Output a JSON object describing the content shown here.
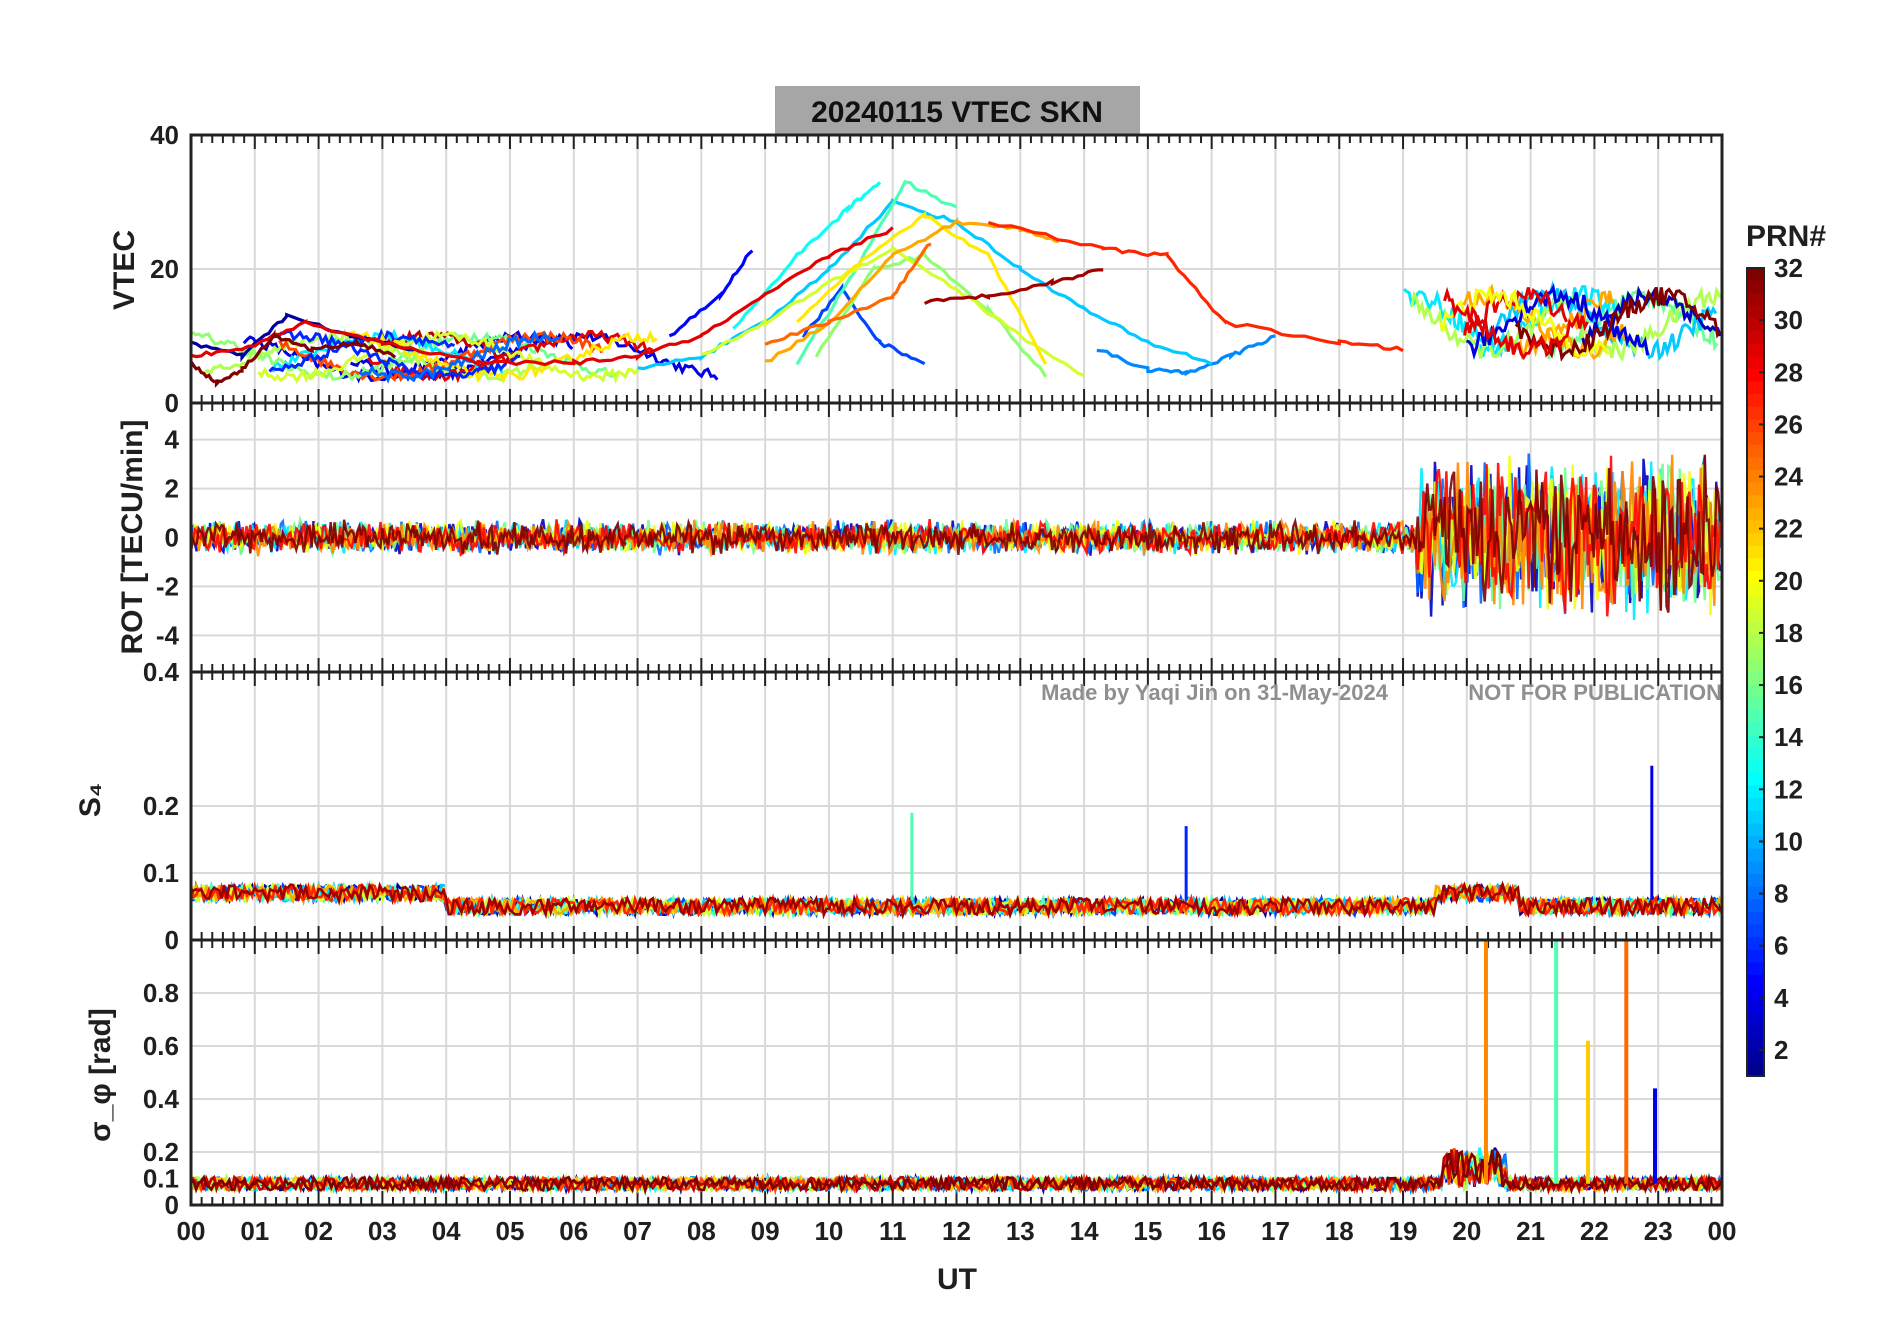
{
  "title": "20240115    VTEC  SKN",
  "watermark_left": "Made by Yaqi Jin on 31-May-2024",
  "watermark_right": "NOT FOR PUBLICATION",
  "colorbar": {
    "label": "PRN#",
    "min": 1,
    "max": 32,
    "ticks": [
      "2",
      "4",
      "6",
      "8",
      "10",
      "12",
      "14",
      "16",
      "18",
      "20",
      "22",
      "24",
      "26",
      "28",
      "30",
      "32"
    ],
    "colormap": "jet"
  },
  "chart_data": [
    {
      "id": "vtec",
      "type": "line",
      "ylabel": "VTEC",
      "ylim": [
        0,
        40
      ],
      "yticks": [
        "0",
        "20",
        "40"
      ],
      "xlim": [
        0,
        24
      ],
      "series": [
        {
          "name": "PRN 2",
          "x": [
            0,
            0.8,
            1.5,
            2.5,
            3.5
          ],
          "values": [
            9,
            7,
            13,
            10,
            8
          ]
        },
        {
          "name": "PRN 5",
          "x": [
            7.5,
            8.3,
            8.8
          ],
          "values": [
            10,
            16,
            23
          ]
        },
        {
          "name": "PRN 7",
          "x": [
            9.6,
            10.2,
            10.8,
            11.5
          ],
          "values": [
            10,
            17,
            9,
            6
          ]
        },
        {
          "name": "PRN 9",
          "x": [
            14.2,
            15,
            15.6,
            16.3,
            17
          ],
          "values": [
            8,
            5,
            4.5,
            7,
            10
          ]
        },
        {
          "name": "PRN 11",
          "x": [
            7.0,
            8,
            9,
            10,
            11,
            12,
            13,
            14,
            15,
            16
          ],
          "values": [
            5,
            7,
            12,
            20,
            30,
            27,
            20,
            14,
            9,
            6
          ]
        },
        {
          "name": "PRN 13",
          "x": [
            8.5,
            9.5,
            10.3,
            10.8
          ],
          "values": [
            11,
            22,
            29,
            33
          ]
        },
        {
          "name": "PRN 15",
          "x": [
            9.5,
            10.3,
            11.2,
            12.0
          ],
          "values": [
            6,
            18,
            33,
            29
          ]
        },
        {
          "name": "PRN 17",
          "x": [
            9.8,
            10.7,
            11.5,
            12.5,
            13.4
          ],
          "values": [
            7,
            20,
            22,
            14,
            4
          ]
        },
        {
          "name": "PRN 19",
          "x": [
            8.0,
            9,
            10,
            11,
            12,
            13,
            14
          ],
          "values": [
            7,
            12,
            18,
            23,
            17,
            10,
            4
          ]
        },
        {
          "name": "PRN 21",
          "x": [
            9.5,
            10.5,
            11.5,
            12.5,
            13.4
          ],
          "values": [
            12,
            21,
            28,
            22,
            6
          ]
        },
        {
          "name": "PRN 23",
          "x": [
            9.0,
            10,
            11,
            12,
            13,
            13.6
          ],
          "values": [
            6,
            12,
            22,
            27,
            26,
            24
          ]
        },
        {
          "name": "PRN 25",
          "x": [
            9.0,
            10,
            11,
            11.6
          ],
          "values": [
            9,
            12,
            16,
            24
          ]
        },
        {
          "name": "PRN 27",
          "x": [
            12.5,
            14.3,
            15.3,
            16.2,
            18,
            19
          ],
          "values": [
            27,
            23,
            22,
            12,
            9,
            8
          ]
        },
        {
          "name": "PRN 29",
          "x": [
            0,
            0.8,
            1.8,
            3,
            4.5,
            6,
            7,
            8,
            9,
            10,
            11
          ],
          "values": [
            7,
            8,
            12,
            9,
            6,
            6,
            7,
            10,
            16,
            22,
            26
          ]
        },
        {
          "name": "PRN 31",
          "x": [
            11.5,
            12.5,
            13.5,
            14.3
          ],
          "values": [
            15,
            16,
            18,
            20
          ]
        },
        {
          "name": "PRN 32",
          "x": [
            0,
            0.4,
            0.8,
            1.3,
            1.9,
            2.6,
            3.2
          ],
          "values": [
            6,
            3,
            5,
            10,
            8,
            9,
            7
          ]
        }
      ]
    },
    {
      "id": "rot",
      "type": "line",
      "ylabel": "ROT [TECU/min]",
      "ylim": [
        -5.5,
        5.5
      ],
      "yticks": [
        "-4",
        "-2",
        "0",
        "2",
        "4"
      ],
      "xlim": [
        0,
        24
      ],
      "noise_profile": {
        "quiet_amplitude": 0.6,
        "active_window_ut": [
          19.2,
          24
        ],
        "active_amplitude": 3.5
      }
    },
    {
      "id": "s4",
      "type": "line",
      "ylabel": "S₄",
      "ylim": [
        0,
        0.4
      ],
      "yticks": [
        "0",
        "0.1",
        "0.2",
        "0.4"
      ],
      "xlim": [
        0,
        24
      ],
      "baseline": 0.05,
      "peaks": [
        {
          "x": 11.3,
          "y": 0.19,
          "prn": 15
        },
        {
          "x": 22.9,
          "y": 0.26,
          "prn": 4
        },
        {
          "x": 15.6,
          "y": 0.17,
          "prn": 6
        }
      ]
    },
    {
      "id": "sigma",
      "type": "line",
      "ylabel": "σ_φ [rad]",
      "ylim": [
        0,
        1
      ],
      "yticks": [
        "0",
        "0.1",
        "0.2",
        "0.4",
        "0.6",
        "0.8"
      ],
      "xlim": [
        0,
        24
      ],
      "baseline": 0.08,
      "peaks": [
        {
          "x": 20.3,
          "y": 1.0,
          "prn": 24
        },
        {
          "x": 21.4,
          "y": 1.0,
          "prn": 15
        },
        {
          "x": 22.5,
          "y": 1.0,
          "prn": 25
        },
        {
          "x": 21.9,
          "y": 0.62,
          "prn": 22
        },
        {
          "x": 22.95,
          "y": 0.44,
          "prn": 4
        }
      ]
    }
  ],
  "xaxis": {
    "label": "UT",
    "ticks": [
      "00",
      "01",
      "02",
      "03",
      "04",
      "05",
      "06",
      "07",
      "08",
      "09",
      "10",
      "11",
      "12",
      "13",
      "14",
      "15",
      "16",
      "17",
      "18",
      "19",
      "20",
      "21",
      "22",
      "23",
      "00"
    ]
  }
}
